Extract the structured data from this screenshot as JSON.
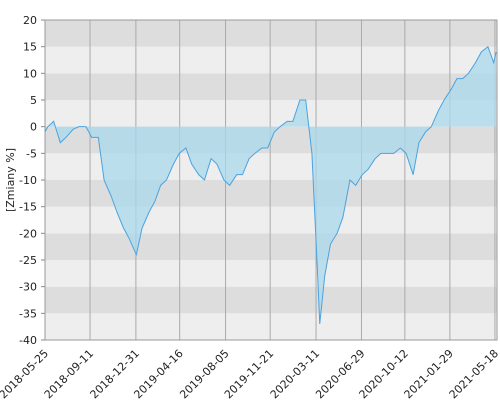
{
  "chart_data": {
    "type": "area",
    "y_label": "[Zmiany %]",
    "x": [
      "2018-05-25",
      "2018-06-01",
      "2018-06-15",
      "2018-07-01",
      "2018-07-15",
      "2018-08-01",
      "2018-08-15",
      "2018-09-01",
      "2018-09-15",
      "2018-10-01",
      "2018-10-15",
      "2018-11-01",
      "2018-11-15",
      "2018-12-01",
      "2018-12-15",
      "2019-01-01",
      "2019-01-15",
      "2019-02-01",
      "2019-02-15",
      "2019-03-01",
      "2019-03-15",
      "2019-04-01",
      "2019-04-15",
      "2019-05-01",
      "2019-05-15",
      "2019-06-01",
      "2019-06-15",
      "2019-07-01",
      "2019-07-15",
      "2019-08-01",
      "2019-08-15",
      "2019-09-01",
      "2019-09-15",
      "2019-10-01",
      "2019-10-15",
      "2019-11-01",
      "2019-11-15",
      "2019-12-01",
      "2019-12-15",
      "2020-01-01",
      "2020-01-15",
      "2020-02-01",
      "2020-02-15",
      "2020-03-01",
      "2020-03-15",
      "2020-03-20",
      "2020-04-01",
      "2020-04-15",
      "2020-05-01",
      "2020-05-15",
      "2020-06-01",
      "2020-06-15",
      "2020-07-01",
      "2020-07-15",
      "2020-08-01",
      "2020-08-15",
      "2020-09-01",
      "2020-09-15",
      "2020-10-01",
      "2020-10-15",
      "2020-11-01",
      "2020-11-15",
      "2020-12-01",
      "2020-12-15",
      "2021-01-01",
      "2021-01-15",
      "2021-02-01",
      "2021-02-15",
      "2021-03-01",
      "2021-03-15",
      "2021-04-01",
      "2021-04-15",
      "2021-05-01",
      "2021-05-15",
      "2021-05-21"
    ],
    "series": [
      {
        "color": "#4aa3df",
        "fill": "#a9d8ec",
        "values": [
          -1,
          0,
          1,
          -3,
          -2,
          -0.5,
          0,
          0,
          -2,
          -2,
          -10,
          -13,
          -16,
          -19,
          -21,
          -24,
          -19,
          -16,
          -14,
          -11,
          -10,
          -7,
          -5,
          -4,
          -7,
          -9,
          -10,
          -6,
          -7,
          -10,
          -11,
          -9,
          -9,
          -6,
          -5,
          -4,
          -4,
          -1,
          0,
          1,
          1,
          5,
          5,
          -5,
          -28,
          -37,
          -28,
          -22,
          -20,
          -17,
          -10,
          -11,
          -9,
          -8,
          -6,
          -5,
          -5,
          -5,
          -4,
          -5,
          -9,
          -3,
          -1,
          0,
          3,
          5,
          7,
          9,
          9,
          10,
          12,
          14,
          15,
          12,
          14
        ]
      }
    ],
    "xlim": [
      "2018-05-25",
      "2021-05-23"
    ],
    "xticks": [
      "2018-05-25",
      "2018-09-11",
      "2018-12-31",
      "2019-04-16",
      "2019-08-05",
      "2019-11-21",
      "2020-03-11",
      "2020-06-29",
      "2020-10-12",
      "2021-01-29",
      "2021-05-18"
    ],
    "ylim": [
      -40,
      20
    ],
    "yticks": [
      -40,
      -35,
      -30,
      -25,
      -20,
      -15,
      -10,
      -5,
      0,
      5,
      10,
      15,
      20
    ],
    "bands": [
      "#dddddd",
      "#eeeeee"
    ],
    "grid": true
  }
}
